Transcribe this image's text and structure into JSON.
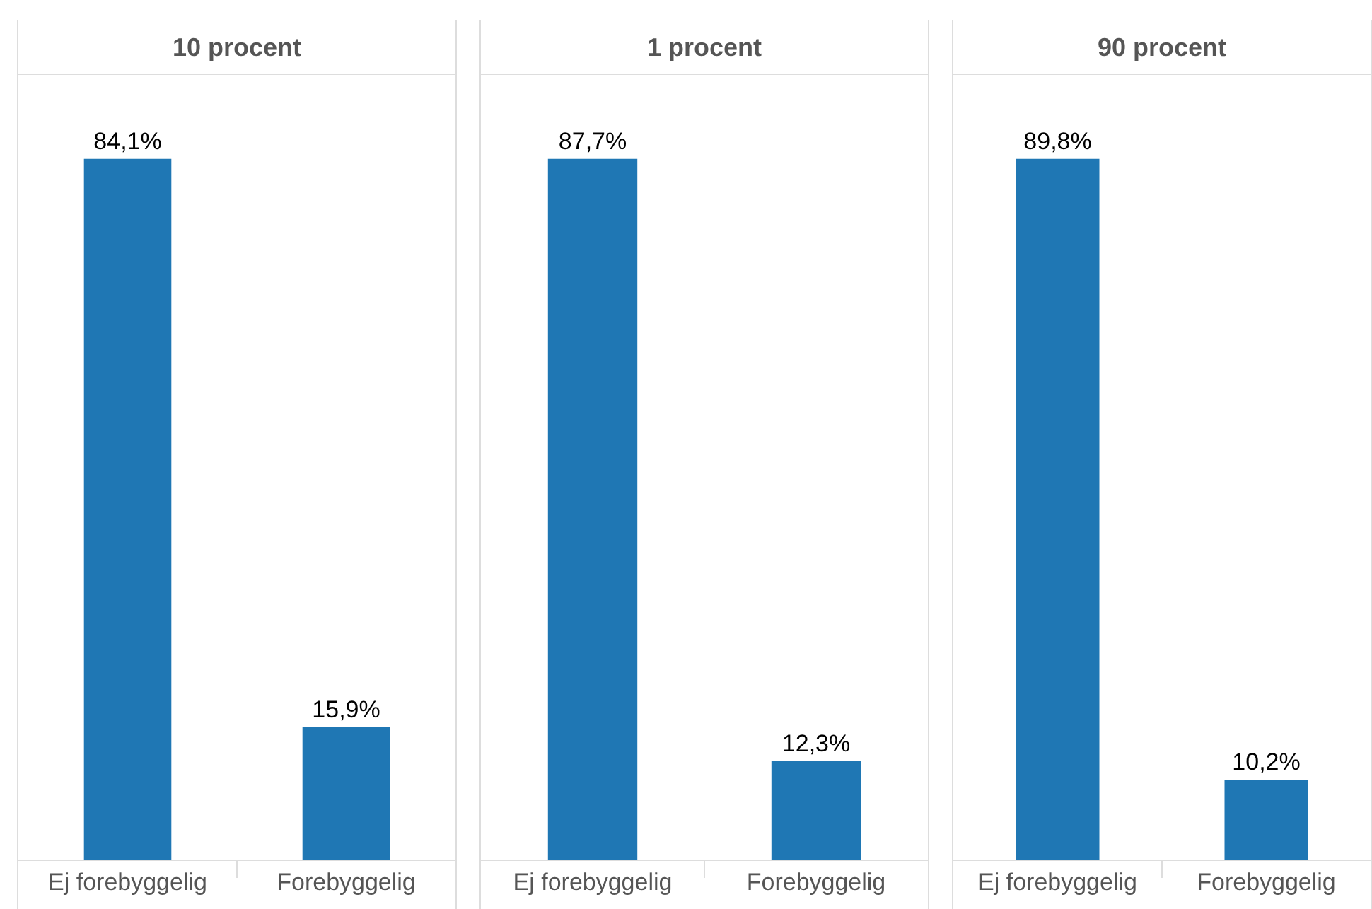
{
  "chart_data": [
    {
      "type": "bar",
      "title": "10 procent",
      "categories": [
        "Ej forebyggelig",
        "Forebyggelig"
      ],
      "values": [
        84.1,
        15.9
      ],
      "value_labels": [
        "84,1%",
        "15,9%"
      ],
      "color": "#1f77b4"
    },
    {
      "type": "bar",
      "title": "1 procent",
      "categories": [
        "Ej forebyggelig",
        "Forebyggelig"
      ],
      "values": [
        87.7,
        12.3
      ],
      "value_labels": [
        "87,7%",
        "12,3%"
      ],
      "color": "#1f77b4"
    },
    {
      "type": "bar",
      "title": "90 procent",
      "categories": [
        "Ej forebyggelig",
        "Forebyggelig"
      ],
      "values": [
        89.8,
        10.2
      ],
      "value_labels": [
        "89,8%",
        "10,2%"
      ],
      "color": "#1f77b4"
    }
  ]
}
